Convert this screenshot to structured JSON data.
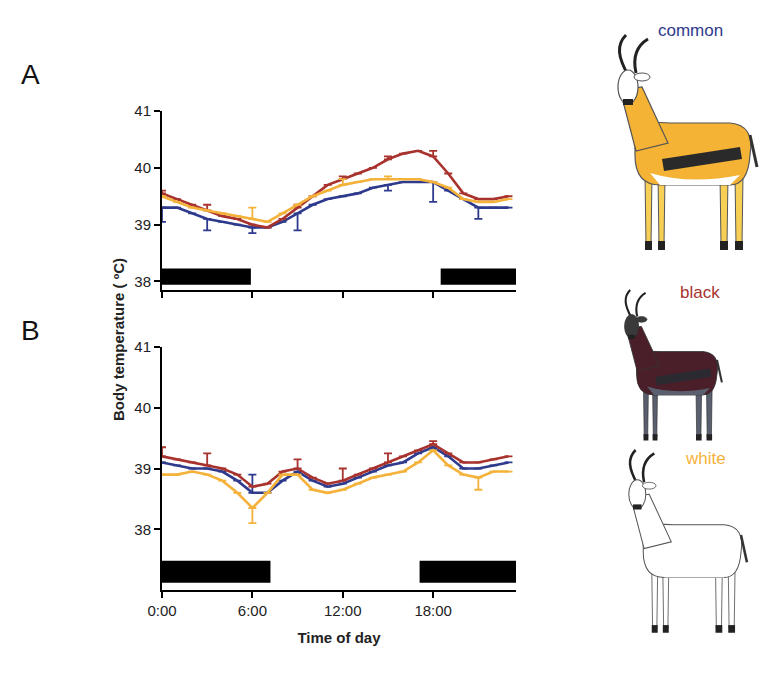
{
  "chart_data": [
    {
      "type": "line",
      "title": "A",
      "ylabel": "Body temperature ( ºC)",
      "x": [
        0,
        1,
        2,
        3,
        4,
        5,
        6,
        7,
        8,
        9,
        10,
        11,
        12,
        13,
        14,
        15,
        16,
        17,
        18,
        19,
        20,
        21,
        22,
        23
      ],
      "xlim": [
        0,
        23.5
      ],
      "xticks": [
        {
          "value": 0,
          "label": "0:00"
        },
        {
          "value": 6,
          "label": "6:00"
        },
        {
          "value": 12,
          "label": "12:00"
        },
        {
          "value": 18,
          "label": "18:00"
        }
      ],
      "ylim": [
        37.85,
        41
      ],
      "yticks": [
        38,
        39,
        40,
        41
      ],
      "tick_labels": "y",
      "dark_periods": [
        [
          0,
          5.9
        ],
        [
          18.5,
          23.5
        ]
      ],
      "series": [
        {
          "name": "common",
          "color": "#2e3a8c",
          "values": [
            39.3,
            39.3,
            39.2,
            39.1,
            39.05,
            39.0,
            38.95,
            38.95,
            39.05,
            39.2,
            39.35,
            39.45,
            39.5,
            39.55,
            39.65,
            39.7,
            39.75,
            39.75,
            39.75,
            39.6,
            39.45,
            39.3,
            39.3,
            39.3
          ],
          "error_down": [
            0.25,
            null,
            null,
            0.2,
            null,
            null,
            0.1,
            null,
            null,
            0.3,
            null,
            null,
            null,
            null,
            null,
            0.1,
            null,
            null,
            0.35,
            null,
            null,
            0.2,
            null,
            null
          ]
        },
        {
          "name": "black",
          "color": "#a8322d",
          "values": [
            39.55,
            39.45,
            39.35,
            39.25,
            39.15,
            39.1,
            39.0,
            38.95,
            39.1,
            39.3,
            39.5,
            39.7,
            39.8,
            39.9,
            40.0,
            40.15,
            40.25,
            40.3,
            40.2,
            39.9,
            39.55,
            39.45,
            39.45,
            39.5
          ],
          "error_up": [
            0.05,
            null,
            null,
            0.1,
            null,
            null,
            null,
            null,
            null,
            0.05,
            null,
            null,
            0.05,
            null,
            null,
            0.05,
            null,
            null,
            0.1,
            null,
            null,
            null,
            null,
            null
          ]
        },
        {
          "name": "white",
          "color": "#f4b23a",
          "values": [
            39.5,
            39.4,
            39.3,
            39.25,
            39.2,
            39.15,
            39.1,
            39.05,
            39.2,
            39.35,
            39.5,
            39.6,
            39.7,
            39.75,
            39.8,
            39.8,
            39.8,
            39.8,
            39.75,
            39.65,
            39.45,
            39.4,
            39.4,
            39.45
          ],
          "error_up": [
            null,
            null,
            null,
            null,
            null,
            null,
            0.2,
            null,
            null,
            null,
            null,
            null,
            0.1,
            null,
            null,
            0.05,
            null,
            null,
            null,
            null,
            null,
            null,
            null,
            null
          ]
        }
      ]
    },
    {
      "type": "line",
      "title": "B",
      "xlabel": "Time of day",
      "x": [
        0,
        1,
        2,
        3,
        4,
        5,
        6,
        7,
        8,
        9,
        10,
        11,
        12,
        13,
        14,
        15,
        16,
        17,
        18,
        19,
        20,
        21,
        22,
        23
      ],
      "xlim": [
        0,
        23.5
      ],
      "xticks": [
        {
          "value": 0,
          "label": "0:00"
        },
        {
          "value": 6,
          "label": "6:00"
        },
        {
          "value": 12,
          "label": "12:00"
        },
        {
          "value": 18,
          "label": "18:00"
        }
      ],
      "ylim": [
        37.0,
        41
      ],
      "yticks": [
        38,
        39,
        40,
        41
      ],
      "dark_periods": [
        [
          0,
          7.2
        ],
        [
          17.1,
          23.5
        ]
      ],
      "series": [
        {
          "name": "common",
          "color": "#2e3a8c",
          "values": [
            39.1,
            39.05,
            39.0,
            39.0,
            38.95,
            38.8,
            38.6,
            38.6,
            38.8,
            38.95,
            38.8,
            38.7,
            38.75,
            38.85,
            38.95,
            39.05,
            39.1,
            39.25,
            39.35,
            39.2,
            39.0,
            39.0,
            39.05,
            39.1
          ],
          "error_up": [
            null,
            null,
            null,
            null,
            null,
            null,
            0.3,
            null,
            null,
            null,
            null,
            null,
            null,
            null,
            null,
            null,
            null,
            null,
            null,
            null,
            null,
            null,
            null,
            null
          ]
        },
        {
          "name": "black",
          "color": "#a8322d",
          "values": [
            39.2,
            39.15,
            39.1,
            39.05,
            39.0,
            38.9,
            38.7,
            38.75,
            38.95,
            39.0,
            38.85,
            38.75,
            38.8,
            38.9,
            39.0,
            39.1,
            39.2,
            39.3,
            39.4,
            39.25,
            39.1,
            39.1,
            39.15,
            39.2
          ],
          "error_up": [
            0.15,
            null,
            null,
            0.2,
            null,
            null,
            null,
            null,
            null,
            0.15,
            null,
            null,
            0.2,
            null,
            null,
            0.15,
            null,
            null,
            0.05,
            null,
            null,
            null,
            null,
            null
          ]
        },
        {
          "name": "white",
          "color": "#f4b23a",
          "values": [
            38.9,
            38.9,
            38.95,
            38.9,
            38.8,
            38.6,
            38.35,
            38.6,
            38.9,
            38.9,
            38.65,
            38.6,
            38.65,
            38.75,
            38.85,
            38.9,
            38.95,
            39.1,
            39.3,
            39.05,
            38.9,
            38.85,
            38.95,
            38.95
          ],
          "error_down": [
            null,
            null,
            null,
            null,
            null,
            null,
            0.25,
            null,
            null,
            null,
            null,
            null,
            null,
            null,
            null,
            null,
            null,
            null,
            null,
            null,
            null,
            0.2,
            null,
            null
          ]
        }
      ]
    }
  ]
}
